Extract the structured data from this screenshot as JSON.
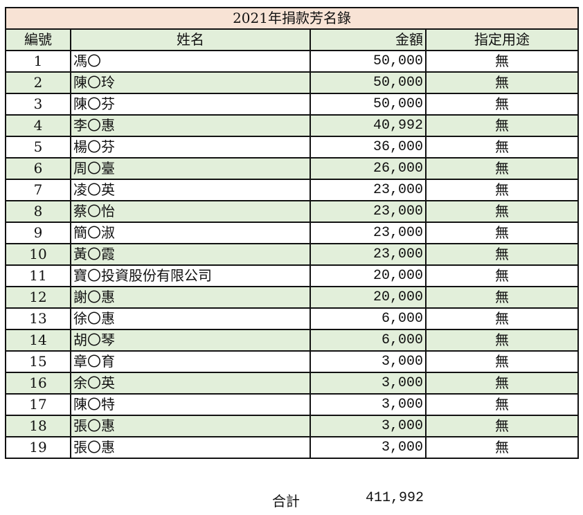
{
  "title": "2021年捐款芳名錄",
  "headers": {
    "no": "編號",
    "name": "姓名",
    "amount": "金額",
    "purpose": "指定用途"
  },
  "rows": [
    {
      "no": "1",
      "name": "馮〇",
      "amount": "50,000",
      "purpose": "無"
    },
    {
      "no": "2",
      "name": "陳〇玲",
      "amount": "50,000",
      "purpose": "無"
    },
    {
      "no": "3",
      "name": "陳〇芬",
      "amount": "50,000",
      "purpose": "無"
    },
    {
      "no": "4",
      "name": "李〇惠",
      "amount": "40,992",
      "purpose": "無"
    },
    {
      "no": "5",
      "name": "楊〇芬",
      "amount": "36,000",
      "purpose": "無"
    },
    {
      "no": "6",
      "name": "周〇臺",
      "amount": "26,000",
      "purpose": "無"
    },
    {
      "no": "7",
      "name": "凌〇英",
      "amount": "23,000",
      "purpose": "無"
    },
    {
      "no": "8",
      "name": "蔡〇怡",
      "amount": "23,000",
      "purpose": "無"
    },
    {
      "no": "9",
      "name": "簡〇淑",
      "amount": "23,000",
      "purpose": "無"
    },
    {
      "no": "10",
      "name": "黃〇霞",
      "amount": "23,000",
      "purpose": "無"
    },
    {
      "no": "11",
      "name": "寶〇投資股份有限公司",
      "amount": "20,000",
      "purpose": "無"
    },
    {
      "no": "12",
      "name": "謝〇惠",
      "amount": "20,000",
      "purpose": "無"
    },
    {
      "no": "13",
      "name": "徐〇惠",
      "amount": "6,000",
      "purpose": "無"
    },
    {
      "no": "14",
      "name": "胡〇琴",
      "amount": "6,000",
      "purpose": "無"
    },
    {
      "no": "15",
      "name": "章〇育",
      "amount": "3,000",
      "purpose": "無"
    },
    {
      "no": "16",
      "name": "余〇英",
      "amount": "3,000",
      "purpose": "無"
    },
    {
      "no": "17",
      "name": "陳〇特",
      "amount": "3,000",
      "purpose": "無"
    },
    {
      "no": "18",
      "name": "張〇惠",
      "amount": "3,000",
      "purpose": "無"
    },
    {
      "no": "19",
      "name": "張〇惠",
      "amount": "3,000",
      "purpose": "無"
    }
  ],
  "total": {
    "label": "合計",
    "value": "411,992"
  },
  "colors": {
    "title_bg": "#f8e3d5",
    "alt_row_bg": "#e2efda",
    "border": "#111111"
  }
}
